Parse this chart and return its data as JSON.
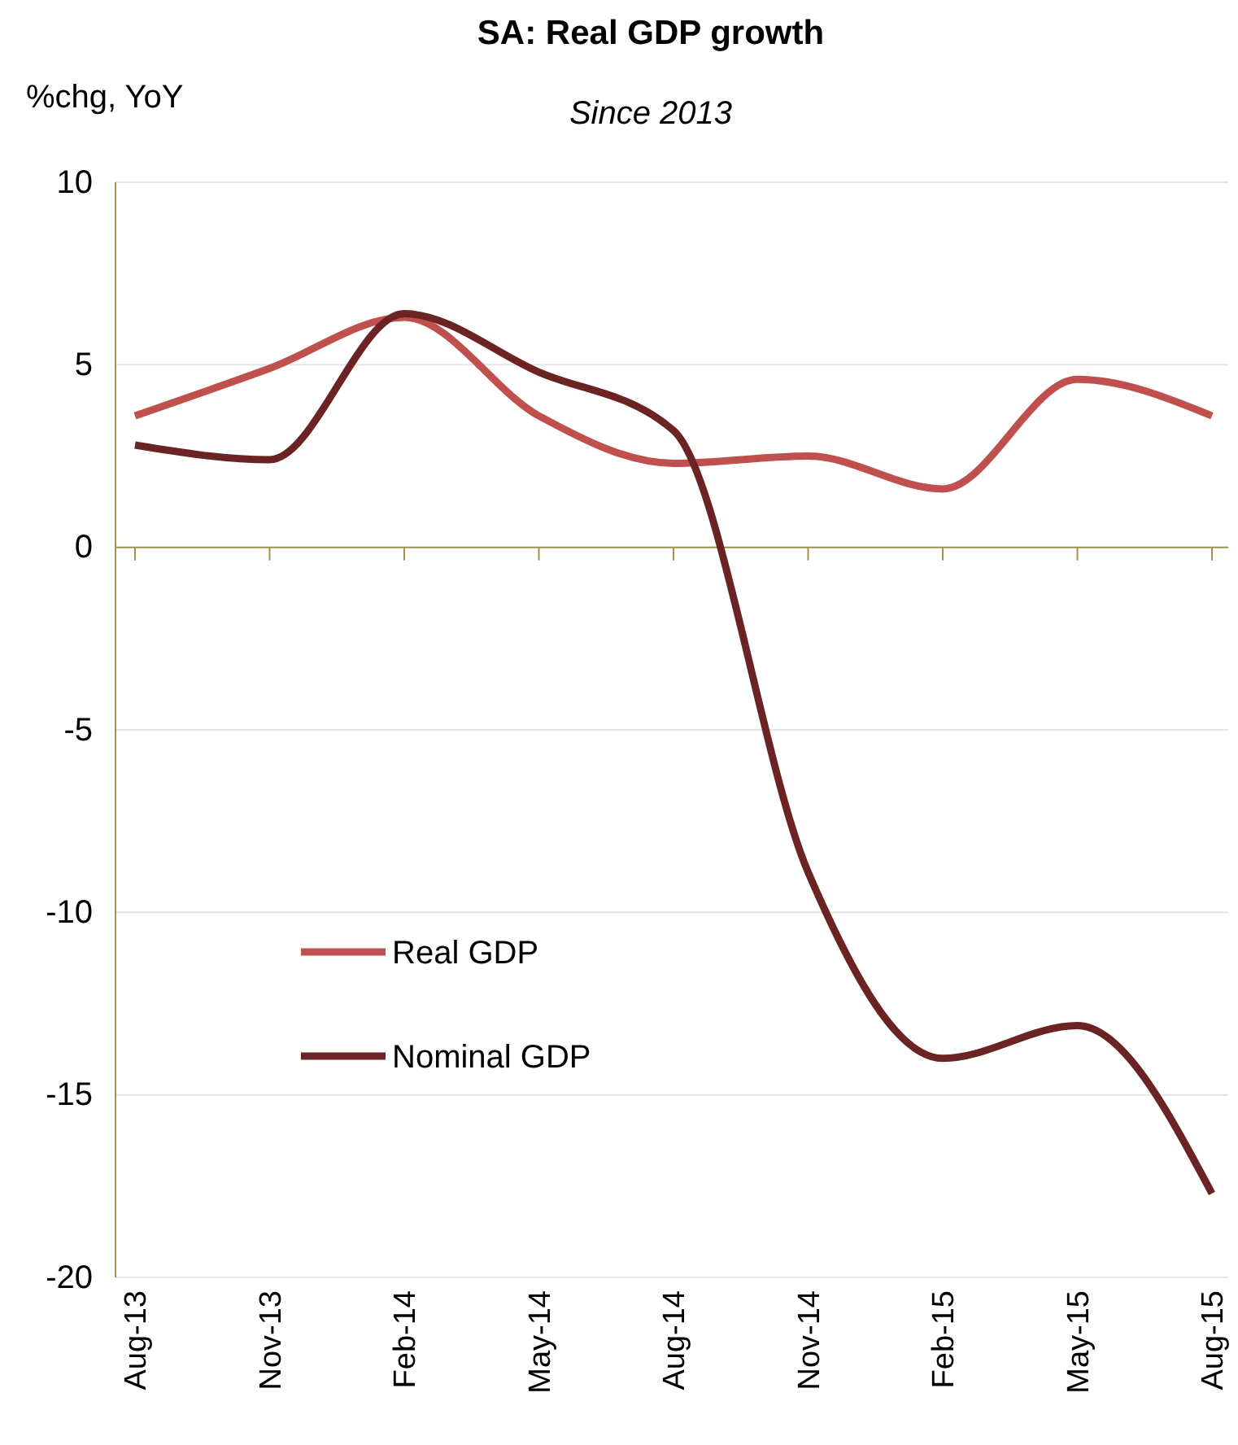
{
  "chart_data": {
    "type": "line",
    "title": "SA: Real GDP growth",
    "subtitle": "Since 2013",
    "ylabel": "%chg, YoY",
    "categories": [
      "Aug-13",
      "Nov-13",
      "Feb-14",
      "May-14",
      "Aug-14",
      "Nov-14",
      "Feb-15",
      "May-15",
      "Aug-15"
    ],
    "series": [
      {
        "name": "Real GDP",
        "color": "#c0504d",
        "values": [
          3.6,
          4.9,
          6.3,
          3.6,
          2.3,
          2.5,
          1.6,
          4.6,
          3.6
        ]
      },
      {
        "name": "Nominal GDP",
        "color": "#6b2423",
        "values": [
          2.8,
          2.4,
          6.4,
          4.8,
          3.2,
          -8.9,
          -14.0,
          -13.1,
          -17.7
        ]
      }
    ],
    "ref_lines": [
      {
        "axis": "y",
        "value": 0,
        "color": "#9c9450"
      }
    ],
    "ylim": [
      -20,
      10
    ],
    "yticks": [
      -20,
      -15,
      -10,
      -5,
      0,
      5,
      10
    ],
    "grid": "y",
    "legend": "bottom left",
    "marker": "none",
    "line_style": "solid"
  }
}
